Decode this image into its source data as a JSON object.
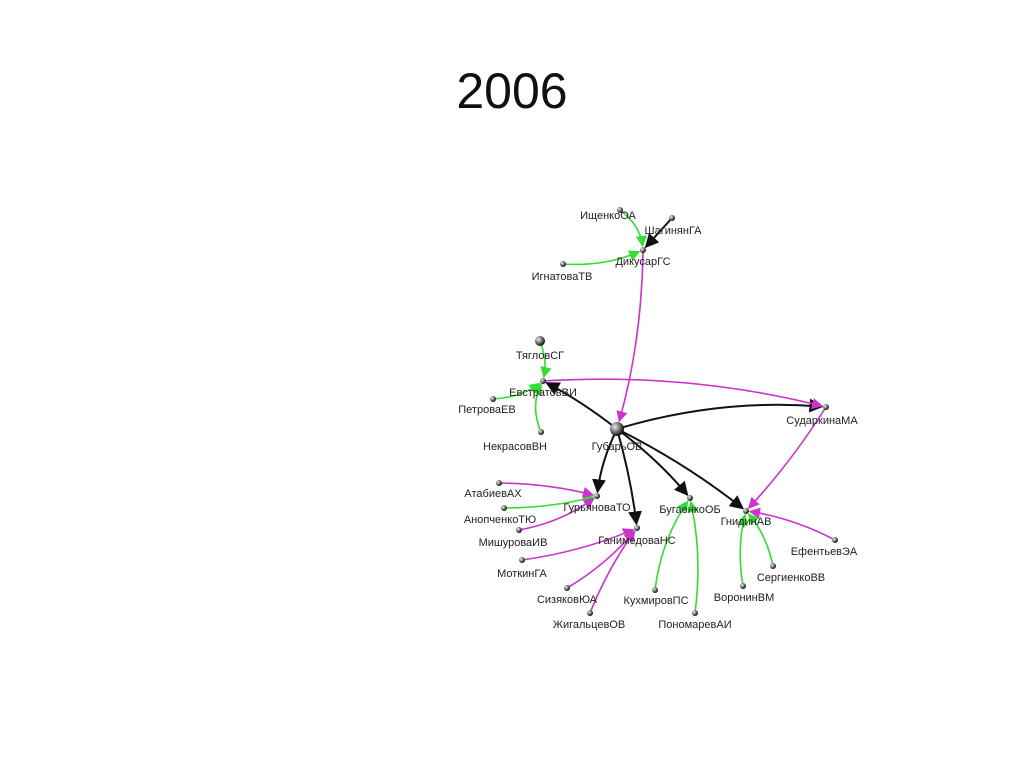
{
  "title": "2006",
  "nodes": [
    {
      "label": "ИщенкоОА"
    },
    {
      "label": "ШагинянГА"
    },
    {
      "label": "ДикусарГС"
    },
    {
      "label": "ИгнатоваТВ"
    },
    {
      "label": "ТягловСГ"
    },
    {
      "label": "ЕвстратовВИ"
    },
    {
      "label": "ПетроваЕВ"
    },
    {
      "label": "НекрасовВН"
    },
    {
      "label": "ГубарьОВ"
    },
    {
      "label": "СударкинаМА"
    },
    {
      "label": "АтабиевАХ"
    },
    {
      "label": "ГурьяноваТО"
    },
    {
      "label": "АнопченкоТЮ"
    },
    {
      "label": "МишуроваИВ"
    },
    {
      "label": "МоткинГА"
    },
    {
      "label": "ГанимедоваНС"
    },
    {
      "label": "БугаенкоОБ"
    },
    {
      "label": "ГнидинАВ"
    },
    {
      "label": "ЕфентьевЭА"
    },
    {
      "label": "СергиенкоВВ"
    },
    {
      "label": "ВоронинВМ"
    },
    {
      "label": "СизяковЮА"
    },
    {
      "label": "ЖигальцевОВ"
    },
    {
      "label": "КухмировПС"
    },
    {
      "label": "ПономаревАИ"
    }
  ]
}
